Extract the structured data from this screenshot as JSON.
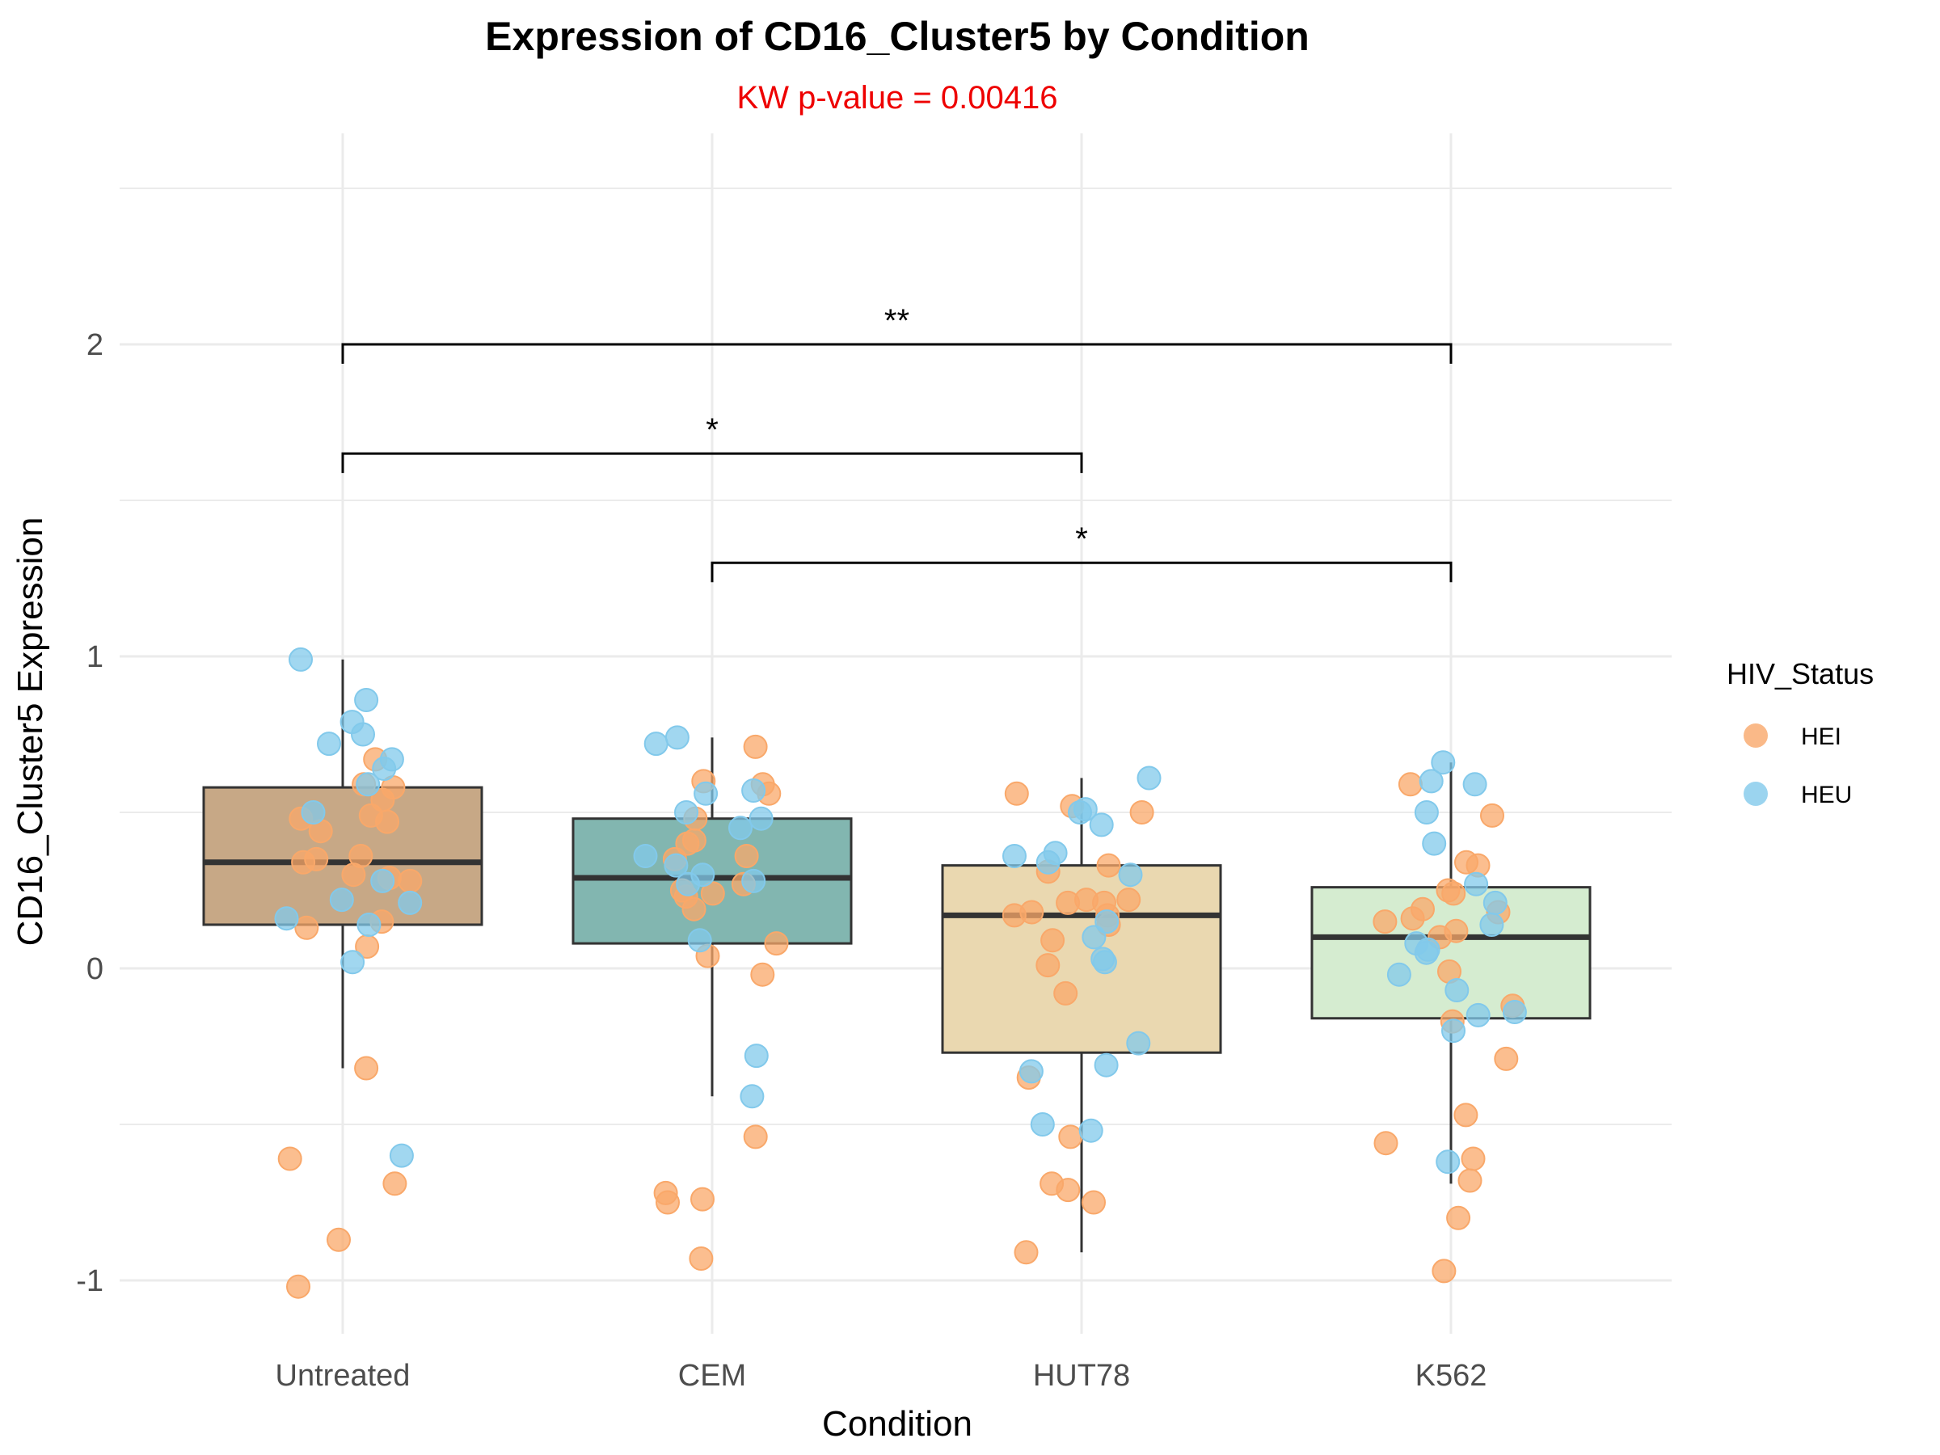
{
  "chart_data": {
    "type": "box",
    "title": "Expression of CD16_Cluster5 by Condition",
    "subtitle": "KW p-value = 0.00416",
    "xlabel": "Condition",
    "ylabel": "CD16_Cluster5 Expression",
    "ylim": [
      -1.15,
      2.55
    ],
    "yticks": [
      -1,
      0,
      1,
      2
    ],
    "ytick_labels": [
      "-1",
      "0",
      "1",
      "2"
    ],
    "grid": true,
    "categories": [
      "Untreated",
      "CEM",
      "HUT78",
      "K562"
    ],
    "colors": {
      "box_fills": [
        "#c7a886",
        "#82b6b0",
        "#ead8b0",
        "#d5ecd0"
      ],
      "box_stroke": "#333333",
      "HEI": "#f9a86a",
      "HEU": "#82c9eb",
      "bracket": "#000000",
      "subtitle": "#ee0000",
      "grid": "#ebebeb"
    },
    "boxes": [
      {
        "category": "Untreated",
        "q1": 0.14,
        "median": 0.34,
        "q3": 0.58,
        "whisker_low": -0.32,
        "whisker_high": 0.99
      },
      {
        "category": "CEM",
        "q1": 0.08,
        "median": 0.29,
        "q3": 0.48,
        "whisker_low": -0.41,
        "whisker_high": 0.74
      },
      {
        "category": "HUT78",
        "q1": -0.27,
        "median": 0.17,
        "q3": 0.33,
        "whisker_low": -0.91,
        "whisker_high": 0.61
      },
      {
        "category": "K562",
        "q1": -0.16,
        "median": 0.1,
        "q3": 0.26,
        "whisker_low": -0.69,
        "whisker_high": 0.66
      }
    ],
    "legend": {
      "title": "HIV_Status",
      "position": "right",
      "entries": [
        "HEI",
        "HEU"
      ]
    },
    "comparisons": [
      {
        "from": "Untreated",
        "to": "K562",
        "y": 2.0,
        "label": "**"
      },
      {
        "from": "Untreated",
        "to": "HUT78",
        "y": 1.65,
        "label": "*"
      },
      {
        "from": "CEM",
        "to": "K562",
        "y": 1.3,
        "label": "*"
      }
    ],
    "series": [
      {
        "name": "HEI",
        "points": [
          {
            "x": "Untreated",
            "y": 0.59
          },
          {
            "x": "Untreated",
            "y": 0.35
          },
          {
            "x": "Untreated",
            "y": 0.36
          },
          {
            "x": "Untreated",
            "y": 0.28
          },
          {
            "x": "Untreated",
            "y": 0.07
          },
          {
            "x": "Untreated",
            "y": -0.32
          },
          {
            "x": "Untreated",
            "y": -1.02
          },
          {
            "x": "Untreated",
            "y": -0.69
          },
          {
            "x": "Untreated",
            "y": 0.49
          },
          {
            "x": "Untreated",
            "y": 0.47
          },
          {
            "x": "Untreated",
            "y": 0.67
          },
          {
            "x": "Untreated",
            "y": 0.44
          },
          {
            "x": "Untreated",
            "y": 0.54
          },
          {
            "x": "Untreated",
            "y": 0.48
          },
          {
            "x": "Untreated",
            "y": 0.3
          },
          {
            "x": "Untreated",
            "y": 0.13
          },
          {
            "x": "Untreated",
            "y": 0.34
          },
          {
            "x": "Untreated",
            "y": 0.15
          },
          {
            "x": "Untreated",
            "y": 0.58
          },
          {
            "x": "Untreated",
            "y": 0.29
          },
          {
            "x": "Untreated",
            "y": -0.61
          },
          {
            "x": "Untreated",
            "y": -0.87
          },
          {
            "x": "CEM",
            "y": 0.27
          },
          {
            "x": "CEM",
            "y": 0.19
          },
          {
            "x": "CEM",
            "y": 0.25
          },
          {
            "x": "CEM",
            "y": 0.41
          },
          {
            "x": "CEM",
            "y": 0.56
          },
          {
            "x": "CEM",
            "y": -0.02
          },
          {
            "x": "CEM",
            "y": -0.93
          },
          {
            "x": "CEM",
            "y": -0.74
          },
          {
            "x": "CEM",
            "y": -0.54
          },
          {
            "x": "CEM",
            "y": -0.75
          },
          {
            "x": "CEM",
            "y": -0.72
          },
          {
            "x": "CEM",
            "y": 0.4
          },
          {
            "x": "CEM",
            "y": 0.48
          },
          {
            "x": "CEM",
            "y": 0.24
          },
          {
            "x": "CEM",
            "y": 0.08
          },
          {
            "x": "CEM",
            "y": 0.04
          },
          {
            "x": "CEM",
            "y": 0.36
          },
          {
            "x": "CEM",
            "y": 0.35
          },
          {
            "x": "CEM",
            "y": 0.6
          },
          {
            "x": "CEM",
            "y": 0.59
          },
          {
            "x": "CEM",
            "y": 0.71
          },
          {
            "x": "CEM",
            "y": 0.23
          },
          {
            "x": "HUT78",
            "y": 0.22
          },
          {
            "x": "HUT78",
            "y": 0.22
          },
          {
            "x": "HUT78",
            "y": 0.14
          },
          {
            "x": "HUT78",
            "y": -0.35
          },
          {
            "x": "HUT78",
            "y": -0.75
          },
          {
            "x": "HUT78",
            "y": -0.91
          },
          {
            "x": "HUT78",
            "y": 0.17
          },
          {
            "x": "HUT78",
            "y": 0.21
          },
          {
            "x": "HUT78",
            "y": 0.33
          },
          {
            "x": "HUT78",
            "y": 0.31
          },
          {
            "x": "HUT78",
            "y": -0.08
          },
          {
            "x": "HUT78",
            "y": -0.71
          },
          {
            "x": "HUT78",
            "y": -0.54
          },
          {
            "x": "HUT78",
            "y": 0.5
          },
          {
            "x": "HUT78",
            "y": 0.52
          },
          {
            "x": "HUT78",
            "y": 0.56
          },
          {
            "x": "HUT78",
            "y": 0.01
          },
          {
            "x": "HUT78",
            "y": 0.18
          },
          {
            "x": "HUT78",
            "y": 0.21
          },
          {
            "x": "HUT78",
            "y": 0.17
          },
          {
            "x": "HUT78",
            "y": 0.09
          },
          {
            "x": "HUT78",
            "y": -0.69
          },
          {
            "x": "K562",
            "y": 0.1
          },
          {
            "x": "K562",
            "y": 0.16
          },
          {
            "x": "K562",
            "y": 0.49
          },
          {
            "x": "K562",
            "y": 0.25
          },
          {
            "x": "K562",
            "y": 0.12
          },
          {
            "x": "K562",
            "y": 0.18
          },
          {
            "x": "K562",
            "y": 0.34
          },
          {
            "x": "K562",
            "y": 0.33
          },
          {
            "x": "K562",
            "y": -0.56
          },
          {
            "x": "K562",
            "y": -0.8
          },
          {
            "x": "K562",
            "y": -0.97
          },
          {
            "x": "K562",
            "y": -0.17
          },
          {
            "x": "K562",
            "y": -0.61
          },
          {
            "x": "K562",
            "y": 0.19
          },
          {
            "x": "K562",
            "y": -0.01
          },
          {
            "x": "K562",
            "y": -0.12
          },
          {
            "x": "K562",
            "y": 0.59
          },
          {
            "x": "K562",
            "y": 0.24
          },
          {
            "x": "K562",
            "y": -0.29
          },
          {
            "x": "K562",
            "y": -0.47
          },
          {
            "x": "K562",
            "y": 0.15
          },
          {
            "x": "K562",
            "y": -0.68
          }
        ]
      },
      {
        "name": "HEU",
        "points": [
          {
            "x": "Untreated",
            "y": 0.75
          },
          {
            "x": "Untreated",
            "y": 0.72
          },
          {
            "x": "Untreated",
            "y": 0.64
          },
          {
            "x": "Untreated",
            "y": 0.59
          },
          {
            "x": "Untreated",
            "y": 0.5
          },
          {
            "x": "Untreated",
            "y": 0.28
          },
          {
            "x": "Untreated",
            "y": 0.21
          },
          {
            "x": "Untreated",
            "y": 0.22
          },
          {
            "x": "Untreated",
            "y": 0.99
          },
          {
            "x": "Untreated",
            "y": 0.79
          },
          {
            "x": "Untreated",
            "y": 0.86
          },
          {
            "x": "Untreated",
            "y": 0.67
          },
          {
            "x": "Untreated",
            "y": 0.02
          },
          {
            "x": "Untreated",
            "y": 0.14
          },
          {
            "x": "Untreated",
            "y": 0.16
          },
          {
            "x": "Untreated",
            "y": -0.6
          },
          {
            "x": "CEM",
            "y": 0.72
          },
          {
            "x": "CEM",
            "y": 0.74
          },
          {
            "x": "CEM",
            "y": 0.56
          },
          {
            "x": "CEM",
            "y": 0.57
          },
          {
            "x": "CEM",
            "y": 0.5
          },
          {
            "x": "CEM",
            "y": 0.48
          },
          {
            "x": "CEM",
            "y": 0.33
          },
          {
            "x": "CEM",
            "y": 0.28
          },
          {
            "x": "CEM",
            "y": 0.09
          },
          {
            "x": "CEM",
            "y": 0.3
          },
          {
            "x": "CEM",
            "y": 0.36
          },
          {
            "x": "CEM",
            "y": 0.27
          },
          {
            "x": "CEM",
            "y": 0.45
          },
          {
            "x": "CEM",
            "y": -0.28
          },
          {
            "x": "CEM",
            "y": -0.41
          },
          {
            "x": "HUT78",
            "y": 0.61
          },
          {
            "x": "HUT78",
            "y": 0.1
          },
          {
            "x": "HUT78",
            "y": 0.3
          },
          {
            "x": "HUT78",
            "y": 0.37
          },
          {
            "x": "HUT78",
            "y": 0.36
          },
          {
            "x": "HUT78",
            "y": 0.34
          },
          {
            "x": "HUT78",
            "y": 0.51
          },
          {
            "x": "HUT78",
            "y": 0.46
          },
          {
            "x": "HUT78",
            "y": 0.15
          },
          {
            "x": "HUT78",
            "y": 0.02
          },
          {
            "x": "HUT78",
            "y": 0.5
          },
          {
            "x": "HUT78",
            "y": 0.03
          },
          {
            "x": "HUT78",
            "y": -0.24
          },
          {
            "x": "HUT78",
            "y": -0.31
          },
          {
            "x": "HUT78",
            "y": -0.33
          },
          {
            "x": "HUT78",
            "y": -0.52
          },
          {
            "x": "HUT78",
            "y": -0.5
          },
          {
            "x": "K562",
            "y": 0.59
          },
          {
            "x": "K562",
            "y": 0.66
          },
          {
            "x": "K562",
            "y": 0.5
          },
          {
            "x": "K562",
            "y": 0.27
          },
          {
            "x": "K562",
            "y": 0.6
          },
          {
            "x": "K562",
            "y": 0.4
          },
          {
            "x": "K562",
            "y": 0.08
          },
          {
            "x": "K562",
            "y": 0.06
          },
          {
            "x": "K562",
            "y": -0.02
          },
          {
            "x": "K562",
            "y": -0.07
          },
          {
            "x": "K562",
            "y": -0.14
          },
          {
            "x": "K562",
            "y": -0.15
          },
          {
            "x": "K562",
            "y": -0.2
          },
          {
            "x": "K562",
            "y": 0.21
          },
          {
            "x": "K562",
            "y": 0.14
          },
          {
            "x": "K562",
            "y": 0.05
          },
          {
            "x": "K562",
            "y": -0.62
          }
        ]
      }
    ]
  }
}
